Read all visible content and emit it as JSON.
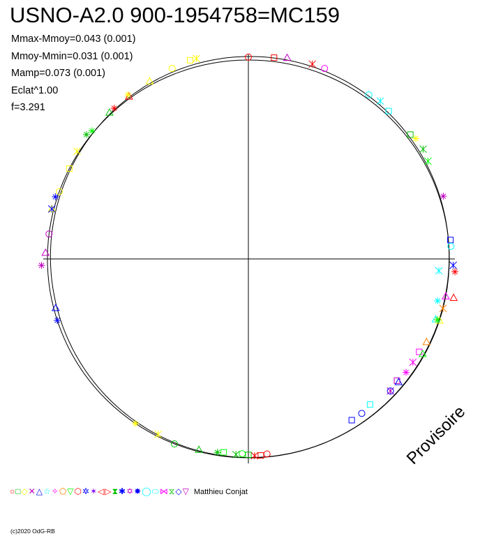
{
  "title": "USNO-A2.0 900-1954758=MC159",
  "stats": [
    "Mmax-Mmoy=0.043 (0.001)",
    "Mmoy-Mmin=0.031 (0.001)",
    "Mamp=0.073 (0.001)",
    "Eclat^1.00",
    "f=3.291"
  ],
  "watermark": "Provisoire",
  "legend": {
    "glyphs": [
      "○",
      "□",
      "◇",
      "✕",
      "△",
      "☆",
      "✧",
      "⬠",
      "▽",
      "⬡",
      "✲",
      "✶",
      "◁",
      "▷",
      "⧗",
      "✱",
      "✡",
      "✸",
      "◯",
      "⬭",
      "⋈",
      "⧖",
      "◇",
      "▽"
    ],
    "colors": [
      "#ff0000",
      "#00c000",
      "#ffff00",
      "#c000c0",
      "#0000ff",
      "#00ffff",
      "#ff00ff",
      "#ff8000",
      "#00ff00",
      "#ff0000",
      "#0000ff",
      "#8000ff",
      "#ff0000",
      "#ff0000",
      "#00c000",
      "#0000ff",
      "#c000c0",
      "#0000ff",
      "#00ffff",
      "#00ffff",
      "#ff00ff",
      "#00c000",
      "#0000ff",
      "#c000c0"
    ],
    "author": "Matthieu Conjat"
  },
  "copyright": "(c)2020 OdG-RB",
  "chart_data": {
    "type": "scatter",
    "coordinate_system": "polar (phase angle, clockwise from top)",
    "xlabel": "",
    "ylabel": "",
    "series": [
      {
        "color": "#ff0000",
        "points": [
          [
            0.0,
            1.015
          ],
          [
            0.02,
            1.02
          ],
          [
            0.05,
            1.03
          ],
          [
            0.26,
            1.03
          ],
          [
            0.28,
            1.04
          ],
          [
            0.485,
            0.985
          ],
          [
            0.49,
            0.99
          ],
          [
            0.495,
            0.99
          ],
          [
            0.885,
            1.01
          ],
          [
            0.9,
            1.01
          ]
        ]
      },
      {
        "color": "#00c000",
        "points": [
          [
            0.5,
            0.985
          ],
          [
            0.51,
            0.985
          ],
          [
            0.525,
            0.985
          ],
          [
            0.54,
            0.99
          ],
          [
            0.56,
            1.0
          ],
          [
            0.145,
            1.02
          ],
          [
            0.16,
            1.03
          ],
          [
            0.855,
            1.02
          ],
          [
            0.88,
            1.01
          ]
        ]
      },
      {
        "color": "#ffff00",
        "points": [
          [
            0.575,
            0.99
          ],
          [
            0.595,
            1.0
          ],
          [
            0.79,
            1.01
          ],
          [
            0.805,
            1.0
          ],
          [
            0.825,
            1.0
          ],
          [
            0.84,
            1.01
          ],
          [
            0.9,
            1.02
          ],
          [
            0.92,
            1.02
          ],
          [
            0.94,
            1.03
          ],
          [
            0.955,
            1.04
          ],
          [
            0.96,
            1.04
          ],
          [
            0.15,
            1.03
          ],
          [
            0.3,
            1.0
          ]
        ]
      },
      {
        "color": "#c000c0",
        "points": [
          [
            0.745,
            1.03
          ],
          [
            0.755,
            1.01
          ],
          [
            0.77,
            1.0
          ],
          [
            0.36,
            0.96
          ],
          [
            0.37,
            0.97
          ],
          [
            0.2,
            1.02
          ],
          [
            0.03,
            1.03
          ]
        ]
      },
      {
        "color": "#0000ff",
        "points": [
          [
            0.36,
            0.97
          ],
          [
            0.37,
            0.97
          ],
          [
            0.235,
            1.01
          ],
          [
            0.255,
            1.02
          ],
          [
            0.7,
            1.0
          ],
          [
            0.71,
            0.99
          ],
          [
            0.4,
            0.96
          ],
          [
            0.41,
            0.96
          ],
          [
            0.79,
            1.01
          ],
          [
            0.8,
            1.01
          ]
        ]
      },
      {
        "color": "#00ffff",
        "points": [
          [
            0.1,
            1.02
          ],
          [
            0.12,
            1.02
          ],
          [
            0.26,
            0.95
          ],
          [
            0.285,
            0.965
          ],
          [
            0.3,
            0.98
          ],
          [
            0.24,
            1.01
          ],
          [
            0.39,
            0.95
          ],
          [
            0.11,
            1.03
          ]
        ]
      },
      {
        "color": "#ff00ff",
        "points": [
          [
            0.33,
            0.97
          ],
          [
            0.34,
            0.97
          ],
          [
            0.35,
            0.97
          ],
          [
            0.28,
            1.0
          ],
          [
            0.06,
            1.03
          ]
        ]
      },
      {
        "color": "#ff8000",
        "points": [
          [
            0.29,
            1.0
          ],
          [
            0.3,
            0.99
          ],
          [
            0.32,
            0.98
          ]
        ]
      },
      {
        "color": "#00ff00",
        "points": [
          [
            0.3,
            0.99
          ],
          [
            0.33,
            0.99
          ],
          [
            0.505,
            0.98
          ],
          [
            0.52,
            0.98
          ],
          [
            0.17,
            1.02
          ],
          [
            0.86,
            1.01
          ]
        ]
      }
    ]
  }
}
